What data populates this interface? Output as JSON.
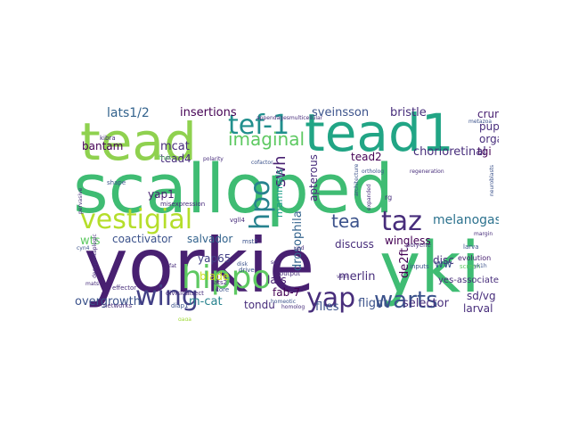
{
  "wordcloud": {
    "words": {
      "yorkie": "yorkie",
      "yki": "yki",
      "scalloped": "scalloped",
      "tead": "tead",
      "tead1": "tead1",
      "hippo": "hippo",
      "tef1": "tef-1",
      "vestigial": "vestigial",
      "wing": "wing",
      "yap": "yap",
      "warts": "warts",
      "taz": "taz",
      "tea": "tea",
      "hpo": "hpo",
      "imaginal": "imaginal",
      "swh": "swh",
      "tead4": "tead4",
      "lats12": "lats1/2",
      "insertions": "insertions",
      "sveinsson": "sveinsson",
      "bristle": "bristle",
      "crumbs": "crumbs",
      "pupal": "pupal",
      "organ": "organ",
      "tgi": "tgi",
      "chorioretinal": "chorioretinal",
      "tead2": "tead2",
      "apterous": "apterous",
      "mcat": "mcat",
      "bantam": "bantam",
      "yap1": "yap1",
      "mammals": "mammals",
      "melanogaster": "melanogaster",
      "wts": "wts",
      "coactivator": "coactivator",
      "salvador": "salvador",
      "wingless": "wingless",
      "discuss": "discuss",
      "disc": "disc",
      "ww": "ww",
      "yap65": "yap65",
      "drosophila": "drosophila",
      "de2ft": "de2ft",
      "lats": "lats",
      "merlin": "merlin",
      "blade": "blade",
      "overgrowth": "overgrowth",
      "mcat2": "m-cat",
      "tondu": "tondu",
      "fab7": "fab-7",
      "flies": "flies",
      "flight": "flight",
      "selector": "selector",
      "sdvg": "sd/vg",
      "larval": "larval",
      "yesassociated": "yes-associated",
      "evolution": "evolution",
      "screen": "screen",
      "larva": "larva",
      "polyene": "polyene",
      "inputs": "inputs",
      "ykl": "yk1h",
      "margin": "margin",
      "fruit": "fruit",
      "shape": "shape",
      "misexpression": "misexpression",
      "effector": "effector",
      "division": "division",
      "insect": "insect",
      "core": "core",
      "lats2": "lats2",
      "drive": "drive",
      "output": "output",
      "vgl4": "vgll4",
      "mst2": "mst2",
      "appendages": "appendagesmulticellular",
      "cofactor": "cofactor",
      "polarity": "polarity",
      "ortholog": "ortholog",
      "expanded": "expanded",
      "architecture": "architecture",
      "regeneration": "regeneration",
      "neuroblasts": "neuroblasts",
      "pervasive": "pervasive",
      "decapentaplegic": "decapentaplegic",
      "kibra": "kibra",
      "networks": "networks",
      "diap1": "diap1",
      "homeotic": "homeotic",
      "homolog": "homolog",
      "mats": "mats",
      "cyn4": "cyn4",
      "metazoa": "metazoa",
      "fat": "fat",
      "vein": "vein",
      "gaga": "gaga",
      "upd": "upd",
      "rg": "rg",
      "disk": "disk",
      "sox": "sox"
    }
  }
}
